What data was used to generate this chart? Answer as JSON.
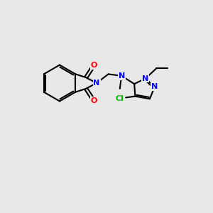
{
  "bg_color": "#e8e8e8",
  "bond_color": "#000000",
  "n_color": "#0000ff",
  "o_color": "#ff0000",
  "cl_color": "#00bb00",
  "lw": 1.5,
  "fs": 8.0,
  "figsize": [
    3.0,
    3.0
  ],
  "dpi": 100,
  "xlim": [
    0,
    10
  ],
  "ylim": [
    0,
    10
  ]
}
